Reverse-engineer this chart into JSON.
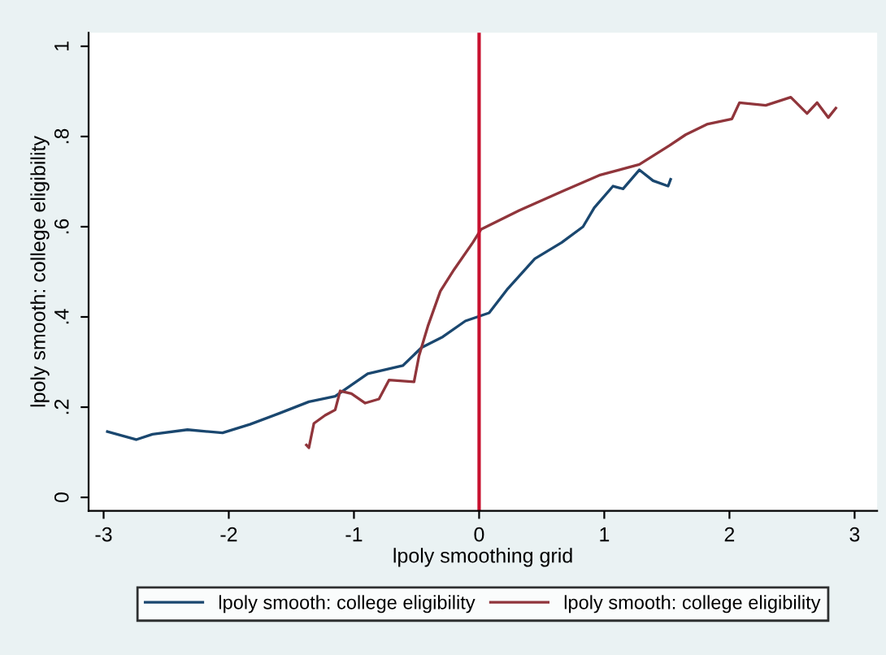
{
  "chart_data": {
    "type": "line",
    "xlabel": "lpoly smoothing grid",
    "ylabel": "lpoly smooth: college eligibility",
    "xlim": [
      -3.12,
      3.18
    ],
    "ylim": [
      -0.03,
      1.03
    ],
    "xticks": [
      -3,
      -2,
      -1,
      0,
      1,
      2,
      3
    ],
    "yticks": [
      0,
      {
        "value": 0.2,
        "label": ".2"
      },
      {
        "value": 0.4,
        "label": ".4"
      },
      {
        "value": 0.6,
        "label": ".6"
      },
      {
        "value": 0.8,
        "label": ".8"
      },
      1
    ],
    "grid": false,
    "legend": "bottom",
    "marker": "none",
    "line_style": "solid",
    "ref_lines": [
      {
        "axis": "x",
        "value": 0,
        "color": "#c8102e"
      }
    ],
    "series": [
      {
        "name": "lpoly smooth: college eligibility",
        "color": "#1a476f",
        "x": [
          -2.97,
          -2.74,
          -2.61,
          -2.33,
          -2.05,
          -1.83,
          -1.58,
          -1.36,
          -1.15,
          -0.89,
          -0.61,
          -0.46,
          -0.29,
          -0.11,
          0.08,
          0.23,
          0.445,
          0.66,
          0.83,
          0.92,
          1.07,
          1.15,
          1.28,
          1.39,
          1.51,
          1.53
        ],
        "values": [
          0.146,
          0.128,
          0.14,
          0.15,
          0.143,
          0.162,
          0.188,
          0.212,
          0.224,
          0.274,
          0.292,
          0.332,
          0.356,
          0.391,
          0.409,
          0.463,
          0.529,
          0.565,
          0.6,
          0.642,
          0.69,
          0.684,
          0.726,
          0.702,
          0.69,
          0.705
        ]
      },
      {
        "name": "lpoly smooth: college eligibility",
        "color": "#90353b",
        "x": [
          -1.38,
          -1.36,
          -1.32,
          -1.23,
          -1.15,
          -1.11,
          -1.02,
          -0.91,
          -0.8,
          -0.72,
          -0.52,
          -0.48,
          -0.41,
          -0.31,
          -0.2,
          -0.05,
          0.015,
          0.32,
          0.66,
          0.96,
          1.28,
          1.52,
          1.65,
          1.82,
          2.02,
          2.08,
          2.29,
          2.49,
          2.62,
          2.7,
          2.79,
          2.85
        ],
        "values": [
          0.116,
          0.11,
          0.164,
          0.182,
          0.194,
          0.236,
          0.23,
          0.209,
          0.218,
          0.26,
          0.256,
          0.314,
          0.379,
          0.457,
          0.505,
          0.565,
          0.594,
          0.636,
          0.678,
          0.714,
          0.738,
          0.78,
          0.804,
          0.827,
          0.839,
          0.875,
          0.869,
          0.887,
          0.851,
          0.875,
          0.842,
          0.863
        ]
      }
    ]
  }
}
